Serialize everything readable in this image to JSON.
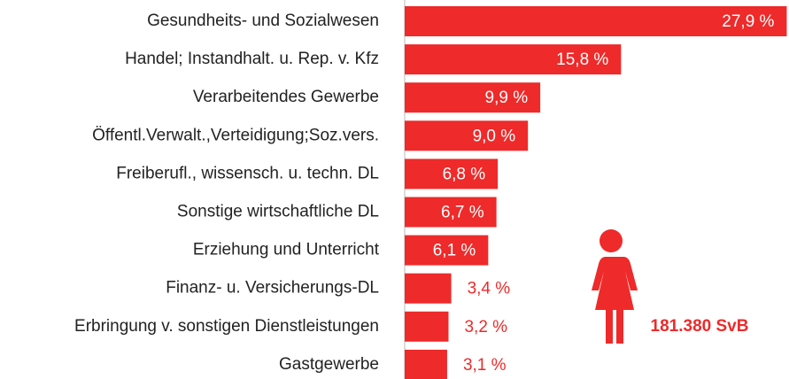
{
  "chart_data": {
    "type": "barh",
    "categories": [
      "Gesundheits- und Sozialwesen",
      "Handel; Instandhalt. u. Rep. v. Kfz",
      "Verarbeitendes Gewerbe",
      "Öffentl.Verwalt.,Verteidigung;Soz.vers.",
      "Freiberufl., wissensch. u. techn. DL",
      "Sonstige wirtschaftliche DL",
      "Erziehung und Unterricht",
      "Finanz- u. Versicherungs-DL",
      "Erbringung v. sonstigen Dienstleistungen",
      "Gastgewerbe"
    ],
    "values": [
      27.9,
      15.8,
      9.9,
      9.0,
      6.8,
      6.7,
      6.1,
      3.4,
      3.2,
      3.1
    ],
    "value_labels": [
      "27,9 %",
      "15,8 %",
      "9,9 %",
      "9,0 %",
      "6,8 %",
      "6,7 %",
      "6,1 %",
      "3,4 %",
      "3,2 %",
      "3,1 %"
    ],
    "color": "#ee2a2a",
    "xlim": [
      0,
      28
    ],
    "annotation": "181.380 SvB"
  }
}
